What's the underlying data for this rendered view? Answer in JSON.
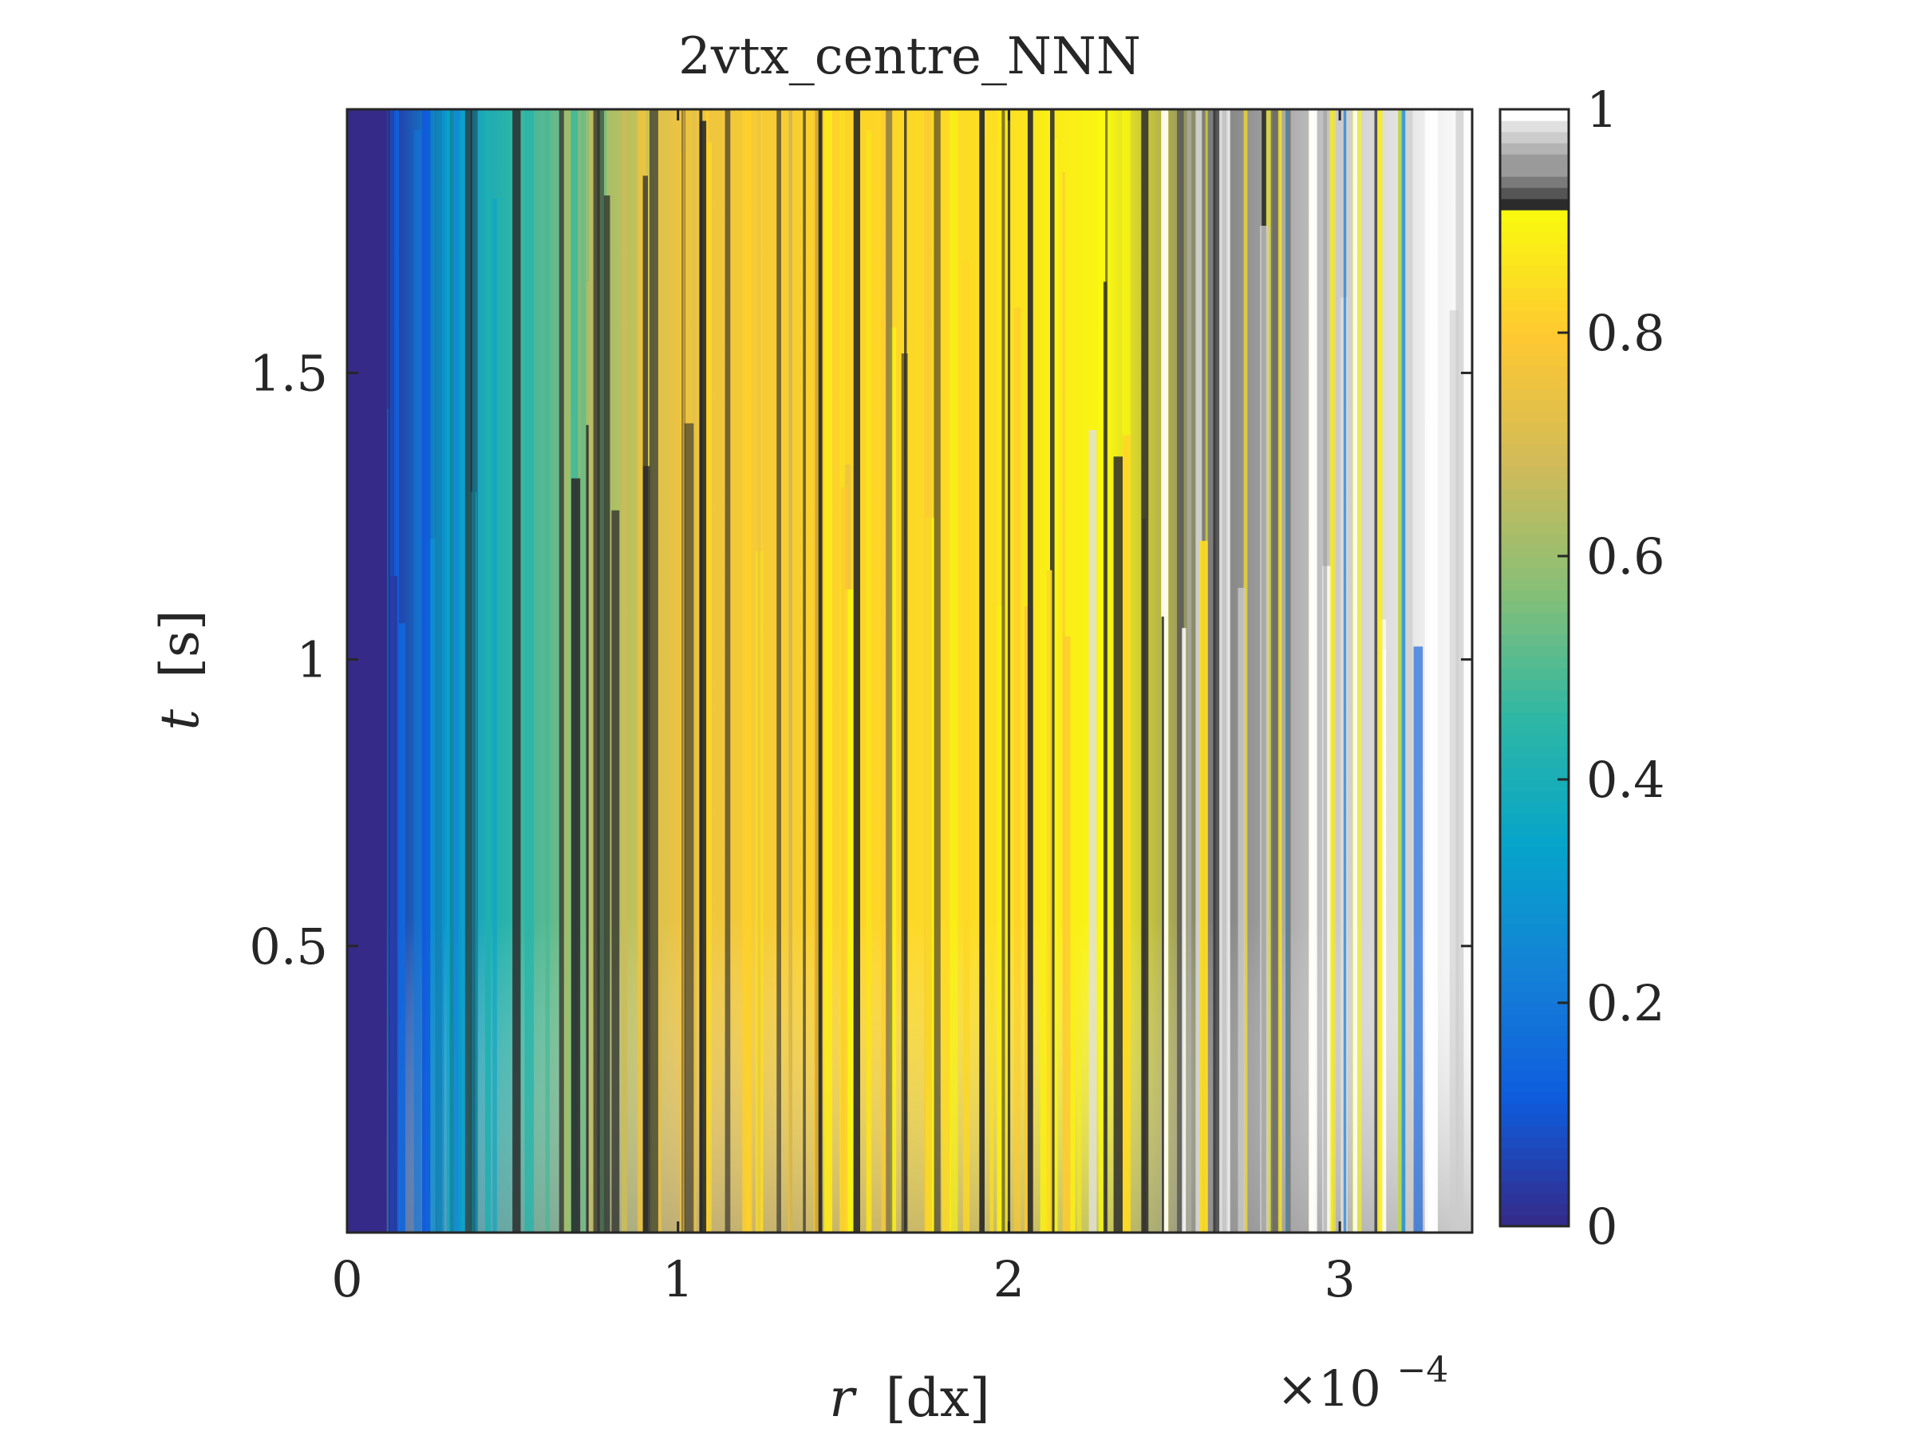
{
  "chart_data": {
    "type": "heatmap",
    "title": "2vtx_centre_NNN",
    "xlabel": {
      "var": "r",
      "unit": "[dx]"
    },
    "ylabel": {
      "var": "t",
      "unit": "[s]"
    },
    "x_scale_factor": {
      "base": "×10",
      "exponent": "−4"
    },
    "xlim": [
      0,
      3.4
    ],
    "ylim": [
      0,
      1.96
    ],
    "x_ticks": [
      {
        "value": 0,
        "label": "0"
      },
      {
        "value": 1,
        "label": "1"
      },
      {
        "value": 2,
        "label": "2"
      },
      {
        "value": 3,
        "label": "3"
      }
    ],
    "y_ticks": [
      {
        "value": 0.5,
        "label": "0.5"
      },
      {
        "value": 1,
        "label": "1"
      },
      {
        "value": 1.5,
        "label": "1.5"
      }
    ],
    "colorbar": {
      "range": [
        0,
        1
      ],
      "ticks": [
        {
          "value": 0,
          "label": "0"
        },
        {
          "value": 0.2,
          "label": "0.2"
        },
        {
          "value": 0.4,
          "label": "0.4"
        },
        {
          "value": 0.6,
          "label": "0.6"
        },
        {
          "value": 0.8,
          "label": "0.8"
        },
        {
          "value": 1,
          "label": "1"
        }
      ],
      "colormap_parula_stops": [
        {
          "v": 0.0,
          "c": "#352a87"
        },
        {
          "v": 0.1,
          "c": "#0f5cdd"
        },
        {
          "v": 0.2,
          "c": "#1481d6"
        },
        {
          "v": 0.3,
          "c": "#06a4ca"
        },
        {
          "v": 0.4,
          "c": "#2eb7a4"
        },
        {
          "v": 0.5,
          "c": "#87bf77"
        },
        {
          "v": 0.6,
          "c": "#d1bb59"
        },
        {
          "v": 0.7,
          "c": "#fec832"
        },
        {
          "v": 0.8,
          "c": "#f9fb0e"
        }
      ],
      "parula_upper_bound": 0.91,
      "gray_band": [
        "#2b2b2b",
        "#555555",
        "#7a7a7a",
        "#9a9a9a",
        "#b4b4b4",
        "#cccccc",
        "#e0e0e0",
        "#ffffff"
      ]
    },
    "field_description_by_r": [
      {
        "r": 0.0,
        "value": 0.02
      },
      {
        "r": 0.15,
        "value": 0.05
      },
      {
        "r": 0.3,
        "value": 0.3
      },
      {
        "r": 0.5,
        "value": 0.45
      },
      {
        "r": 0.75,
        "value": 0.6
      },
      {
        "r": 1.0,
        "value": 0.75
      },
      {
        "r": 1.5,
        "value": 0.82
      },
      {
        "r": 2.0,
        "value": 0.85
      },
      {
        "r": 2.3,
        "value": 0.9
      },
      {
        "r": 2.6,
        "value": 0.94
      },
      {
        "r": 3.0,
        "value": 0.97
      },
      {
        "r": 3.4,
        "value": 0.99
      }
    ]
  }
}
